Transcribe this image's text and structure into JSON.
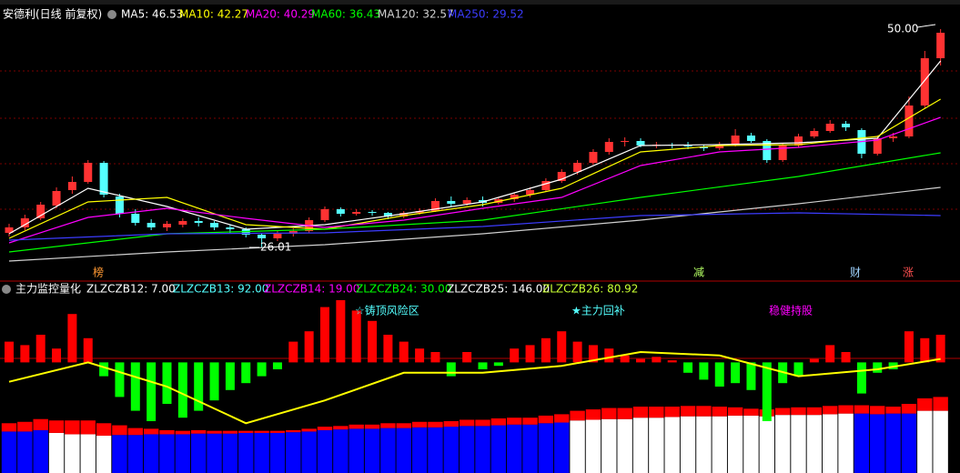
{
  "chart_data": [
    {
      "type": "candlestick",
      "title": "安德利(日线 前复权)",
      "ylim": [
        24.2,
        53.2
      ],
      "up_color": "#ff3232",
      "down_color": "#54ffff",
      "ohlc": [
        [
          27.6,
          28.6,
          27.2,
          28.2
        ],
        [
          28.2,
          29.6,
          27.9,
          29.2
        ],
        [
          29.2,
          31.0,
          29.0,
          30.7
        ],
        [
          30.6,
          32.6,
          30.3,
          32.2
        ],
        [
          32.3,
          33.8,
          31.9,
          33.2
        ],
        [
          33.2,
          35.6,
          33.0,
          35.3
        ],
        [
          35.3,
          35.5,
          31.5,
          31.8
        ],
        [
          31.6,
          31.9,
          29.3,
          29.7
        ],
        [
          29.7,
          30.2,
          28.4,
          28.7
        ],
        [
          28.7,
          29.1,
          27.9,
          28.2
        ],
        [
          28.2,
          28.9,
          27.8,
          28.6
        ],
        [
          28.5,
          29.2,
          28.2,
          28.9
        ],
        [
          28.9,
          29.3,
          28.3,
          28.7
        ],
        [
          28.7,
          28.9,
          27.9,
          28.2
        ],
        [
          28.2,
          28.5,
          27.6,
          28.0
        ],
        [
          28.0,
          28.2,
          27.1,
          27.4
        ],
        [
          27.4,
          27.6,
          26.01,
          27.0
        ],
        [
          27.0,
          27.8,
          26.7,
          27.5
        ],
        [
          27.5,
          28.1,
          27.2,
          27.8
        ],
        [
          27.8,
          29.3,
          27.6,
          29.0
        ],
        [
          29.0,
          30.5,
          28.8,
          30.2
        ],
        [
          30.2,
          30.4,
          29.4,
          29.7
        ],
        [
          29.7,
          30.2,
          29.5,
          29.9
        ],
        [
          29.9,
          30.1,
          29.5,
          29.8
        ],
        [
          29.8,
          29.9,
          29.1,
          29.4
        ],
        [
          29.4,
          30.0,
          29.2,
          29.8
        ],
        [
          29.8,
          30.3,
          29.6,
          30.0
        ],
        [
          30.0,
          31.4,
          29.9,
          31.1
        ],
        [
          31.1,
          31.6,
          30.5,
          30.8
        ],
        [
          30.8,
          31.5,
          30.6,
          31.2
        ],
        [
          31.2,
          31.6,
          30.5,
          30.9
        ],
        [
          30.9,
          31.5,
          30.7,
          31.3
        ],
        [
          31.3,
          32.0,
          31.0,
          31.8
        ],
        [
          31.8,
          32.6,
          31.5,
          32.3
        ],
        [
          32.3,
          33.6,
          32.1,
          33.3
        ],
        [
          33.3,
          34.6,
          33.1,
          34.3
        ],
        [
          34.3,
          35.6,
          34.0,
          35.3
        ],
        [
          35.3,
          36.8,
          35.1,
          36.5
        ],
        [
          36.5,
          38.0,
          36.2,
          37.6
        ],
        [
          37.6,
          38.1,
          37.1,
          37.7
        ],
        [
          37.7,
          38.0,
          37.0,
          37.2
        ],
        [
          37.2,
          37.6,
          36.9,
          37.3
        ],
        [
          37.3,
          37.5,
          36.9,
          37.2
        ],
        [
          37.2,
          37.6,
          36.8,
          37.1
        ],
        [
          37.1,
          37.3,
          36.6,
          36.9
        ],
        [
          36.9,
          37.6,
          36.7,
          37.3
        ],
        [
          37.3,
          39.0,
          37.1,
          38.3
        ],
        [
          38.3,
          38.6,
          37.5,
          37.7
        ],
        [
          37.7,
          37.9,
          35.3,
          35.6
        ],
        [
          35.6,
          37.5,
          35.4,
          37.2
        ],
        [
          37.2,
          38.5,
          37.0,
          38.2
        ],
        [
          38.2,
          39.1,
          38.0,
          38.8
        ],
        [
          38.8,
          40.0,
          38.6,
          39.6
        ],
        [
          39.6,
          39.9,
          38.8,
          39.2
        ],
        [
          38.9,
          39.1,
          35.8,
          36.3
        ],
        [
          36.3,
          38.3,
          36.1,
          38.0
        ],
        [
          38.0,
          38.6,
          37.6,
          38.2
        ],
        [
          38.2,
          42.6,
          38.0,
          41.6
        ],
        [
          41.6,
          47.6,
          41.3,
          46.8
        ],
        [
          46.8,
          50.0,
          46.0,
          49.6
        ]
      ],
      "max_label": "50.00",
      "series": [
        {
          "legend": "MA5: 46.53",
          "color": "#ffffff",
          "x": [
            0,
            5,
            10,
            15,
            20,
            25,
            30,
            35,
            40,
            45,
            50,
            55,
            59
          ],
          "values": [
            27.5,
            32.5,
            30.5,
            28.0,
            28.5,
            29.7,
            31.0,
            33.5,
            37.2,
            37.3,
            37.5,
            38.0,
            46.5
          ]
        },
        {
          "legend": "MA10: 42.27",
          "color": "#ffff00",
          "x": [
            0,
            5,
            10,
            15,
            20,
            25,
            30,
            35,
            40,
            45,
            50,
            55,
            59
          ],
          "values": [
            27,
            31,
            31.5,
            28.5,
            28,
            29.5,
            30.7,
            32.5,
            36.5,
            37.2,
            37.3,
            38.2,
            42.3
          ]
        },
        {
          "legend": "MA20: 40.29",
          "color": "#ff00ff",
          "x": [
            0,
            5,
            10,
            15,
            20,
            25,
            30,
            35,
            40,
            45,
            50,
            55,
            59
          ],
          "values": [
            26.5,
            29.3,
            30.3,
            29.2,
            28.2,
            29.0,
            30.3,
            31.5,
            35,
            36.5,
            37,
            37.8,
            40.3
          ]
        },
        {
          "legend": "MA60: 36.43",
          "color": "#00ff00",
          "x": [
            0,
            10,
            20,
            30,
            40,
            50,
            59
          ],
          "values": [
            25.5,
            27.5,
            28.0,
            29.0,
            31.5,
            33.8,
            36.4
          ]
        },
        {
          "legend": "MA120: 32.57",
          "color": "#d0d0d0",
          "x": [
            0,
            10,
            20,
            30,
            40,
            50,
            59
          ],
          "values": [
            24.5,
            25.5,
            26.3,
            27.5,
            29.0,
            30.8,
            32.6
          ]
        },
        {
          "legend": "MA250: 29.52",
          "color": "#3c3cff",
          "x": [
            0,
            10,
            20,
            30,
            40,
            50,
            59
          ],
          "values": [
            26.8,
            27.5,
            27.6,
            28.3,
            29.5,
            29.8,
            29.5
          ]
        }
      ],
      "annotations": [
        "榜",
        "减",
        "财",
        "涨"
      ]
    },
    {
      "type": "indicator",
      "title": "主力监控量化",
      "ylim": [
        -160,
        90
      ],
      "legend": [
        {
          "text": "ZLZCZB12: 7.00",
          "color": "#ffffff"
        },
        {
          "text": "ZLZCZB13: 92.00",
          "color": "#54ffff"
        },
        {
          "text": "ZLZCZB14: 19.00",
          "color": "#ff00ff"
        },
        {
          "text": "ZLZCZB24: 30.00",
          "color": "#00ff00"
        },
        {
          "text": "ZLZCZB25: 146.00",
          "color": "#ffffff"
        },
        {
          "text": "ZLZCZB26: 80.92",
          "color": "#c8ff32"
        }
      ],
      "histogram": {
        "up_color": "#ff0000",
        "down_color": "#00ff00",
        "values": [
          30,
          25,
          40,
          20,
          70,
          35,
          -20,
          -50,
          -70,
          -85,
          -60,
          -80,
          -70,
          -55,
          -40,
          -30,
          -20,
          -10,
          30,
          45,
          80,
          90,
          75,
          60,
          40,
          30,
          20,
          15,
          -20,
          15,
          -10,
          -5,
          20,
          25,
          35,
          45,
          30,
          25,
          20,
          10,
          5,
          8,
          3,
          -15,
          -25,
          -35,
          -30,
          -40,
          -85,
          -30,
          -20,
          5,
          25,
          15,
          -45,
          -15,
          -10,
          45,
          35,
          40
        ]
      },
      "series": [
        {
          "color": "#ffff00",
          "x": [
            0,
            5,
            10,
            15,
            20,
            25,
            30,
            35,
            40,
            45,
            50,
            55,
            59
          ],
          "values": [
            -28,
            0,
            -35,
            -88,
            -55,
            -15,
            -15,
            -5,
            15,
            10,
            -20,
            -10,
            5
          ]
        }
      ],
      "bars": {
        "ylim": [
          0,
          250
        ],
        "series": [
          {
            "color": "#0000ff",
            "values": [
              60,
              60,
              62,
              null,
              null,
              null,
              null,
              55,
              55,
              56,
              56,
              56,
              57,
              57,
              57,
              58,
              58,
              58,
              59,
              60,
              62,
              63,
              64,
              64,
              65,
              65,
              66,
              66,
              67,
              68,
              68,
              69,
              70,
              70,
              72,
              73,
              null,
              null,
              null,
              null,
              null,
              null,
              null,
              null,
              null,
              null,
              null,
              null,
              null,
              null,
              null,
              null,
              null,
              null,
              86,
              85,
              86,
              86,
              null,
              null
            ]
          },
          {
            "color": "#ffffff",
            "values": [
              null,
              null,
              null,
              58,
              56,
              56,
              54,
              null,
              null,
              null,
              null,
              null,
              null,
              null,
              null,
              null,
              null,
              null,
              null,
              null,
              null,
              null,
              null,
              null,
              null,
              null,
              null,
              null,
              null,
              null,
              null,
              null,
              null,
              null,
              null,
              null,
              76,
              77,
              78,
              78,
              80,
              80,
              81,
              82,
              82,
              82,
              83,
              83,
              82,
              84,
              84,
              84,
              85,
              86,
              null,
              null,
              null,
              null,
              90,
              90
            ]
          },
          {
            "color": "#ff0000",
            "values": [
              12,
              14,
              16,
              18,
              20,
              20,
              18,
              14,
              10,
              8,
              6,
              5,
              5,
              4,
              4,
              3,
              3,
              3,
              3,
              4,
              5,
              5,
              6,
              6,
              7,
              7,
              8,
              8,
              8,
              9,
              9,
              10,
              10,
              10,
              11,
              12,
              14,
              15,
              16,
              16,
              16,
              16,
              15,
              15,
              15,
              14,
              12,
              10,
              10,
              10,
              11,
              11,
              12,
              12,
              12,
              12,
              10,
              14,
              18,
              20
            ]
          }
        ]
      },
      "annotations": [
        {
          "text": "☆铸顶风险区",
          "color": "#54ffff"
        },
        {
          "text": "★主力回补",
          "color": "#54ffff"
        },
        {
          "text": "稳健持股",
          "color": "#ff00ff"
        }
      ]
    }
  ]
}
